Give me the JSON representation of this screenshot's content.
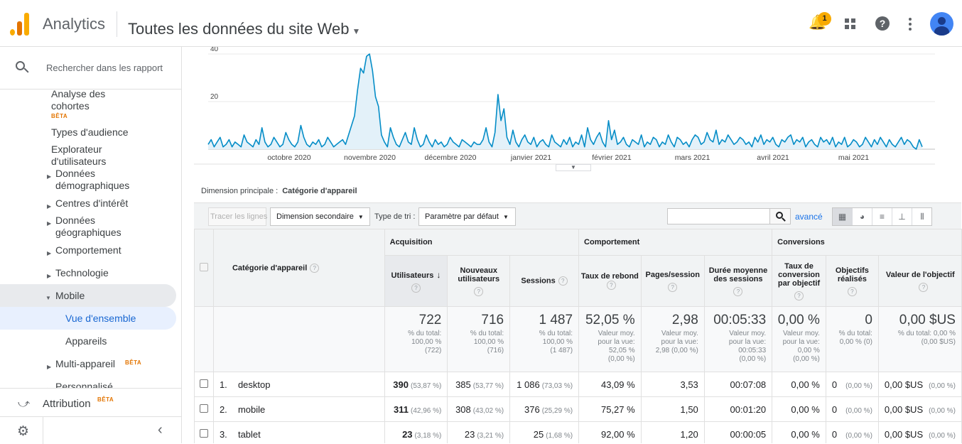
{
  "header": {
    "app_name": "Analytics",
    "property": "Toutes les données du site Web",
    "notification_count": "1"
  },
  "sidebar": {
    "search_placeholder": "Rechercher dans les rapport",
    "items": [
      {
        "label": "Analyse des cohortes",
        "badge": "BÊTA"
      },
      {
        "label": "Types d'audience"
      },
      {
        "label": "Explorateur d'utilisateurs"
      },
      {
        "label": "Données démographiques"
      },
      {
        "label": "Centres d'intérêt"
      },
      {
        "label": "Données géographiques"
      },
      {
        "label": "Comportement"
      },
      {
        "label": "Technologie"
      },
      {
        "label": "Mobile"
      },
      {
        "label": "Vue d'ensemble"
      },
      {
        "label": "Appareils"
      },
      {
        "label": "Multi-appareil",
        "badge": "BÊTA"
      },
      {
        "label": "Personnalisé"
      }
    ],
    "attribution": {
      "label": "Attribution",
      "badge": "BÊTA"
    }
  },
  "chart_data": {
    "type": "area",
    "x_ticks": [
      "octobre 2020",
      "novembre 2020",
      "décembre 2020",
      "janvier 2021",
      "février 2021",
      "mars 2021",
      "avril 2021",
      "mai 2021"
    ],
    "y_ticks": [
      "20",
      "40"
    ],
    "ylim": [
      0,
      40
    ],
    "color": "#058dc7",
    "fill": "#e3f1f9",
    "series": [
      {
        "values": [
          2,
          4,
          1,
          3,
          5,
          1,
          2,
          4,
          1,
          3,
          2,
          1,
          6,
          3,
          2,
          1,
          4,
          2,
          9,
          3,
          1,
          2,
          5,
          3,
          1,
          2,
          7,
          4,
          2,
          1,
          3,
          10,
          5,
          2,
          1,
          3,
          2,
          4,
          1,
          2,
          5,
          3,
          1,
          2,
          3,
          4,
          2,
          6,
          10,
          14,
          25,
          34,
          32,
          39,
          40,
          33,
          22,
          18,
          6,
          3,
          1,
          9,
          5,
          2,
          1,
          4,
          7,
          3,
          2,
          9,
          4,
          1,
          2,
          6,
          3,
          1,
          4,
          2,
          3,
          1,
          2,
          5,
          3,
          2,
          1,
          4,
          3,
          2,
          1,
          3,
          2,
          2,
          4,
          9,
          3,
          1,
          7,
          23,
          12,
          17,
          5,
          2,
          8,
          3,
          1,
          4,
          6,
          3,
          2,
          5,
          1,
          3,
          4,
          2,
          1,
          6,
          3,
          2,
          1,
          4,
          2,
          5,
          1,
          3,
          2,
          6,
          1,
          9,
          4,
          2,
          5,
          7,
          3,
          1,
          12,
          4,
          8,
          2,
          3,
          5,
          2,
          1,
          4,
          3,
          2,
          6,
          1,
          3,
          2,
          5,
          4,
          1,
          3,
          2,
          6,
          3,
          1,
          5,
          4,
          2,
          3,
          1,
          4,
          6,
          5,
          2,
          3,
          7,
          4,
          3,
          8,
          2,
          4,
          3,
          6,
          4,
          2,
          3,
          5,
          4,
          2,
          3,
          1,
          5,
          3,
          6,
          2,
          4,
          3,
          5,
          2,
          1,
          4,
          3,
          5,
          6,
          2,
          4,
          3,
          5,
          1,
          3,
          4,
          2,
          1,
          5,
          3,
          4,
          2,
          5,
          1,
          3,
          2,
          5,
          1,
          2,
          4,
          3,
          1,
          2,
          5,
          3,
          1,
          4,
          2,
          5,
          3,
          1,
          4,
          2,
          1,
          3,
          5,
          2,
          4,
          3,
          1,
          0,
          4,
          1
        ]
      }
    ]
  },
  "report": {
    "primary_dimension_label": "Dimension principale :",
    "primary_dimension_value": "Catégorie d'appareil",
    "plot_rows_button": "Tracer les lignes",
    "secondary_dimension": "Dimension secondaire",
    "sort_type_label": "Type de tri :",
    "sort_type_value": "Paramètre par défaut",
    "advanced_link": "avancé"
  },
  "table": {
    "dimension_header": "Catégorie d'appareil",
    "groups": [
      "Acquisition",
      "Comportement",
      "Conversions"
    ],
    "columns": [
      "Utilisateurs",
      "Nouveaux utilisateurs",
      "Sessions",
      "Taux de rebond",
      "Pages/session",
      "Durée moyenne des sessions",
      "Taux de conversion par objectif",
      "Objectifs réalisés",
      "Valeur de l'objectif"
    ],
    "totals": [
      {
        "value": "722",
        "sub": "% du total:\n100,00 %\n(722)"
      },
      {
        "value": "716",
        "sub": "% du total:\n100,00 %\n(716)"
      },
      {
        "value": "1 487",
        "sub": "% du total:\n100,00 %\n(1 487)"
      },
      {
        "value": "52,05 %",
        "sub": "Valeur moy.\npour la vue:\n52,05 %\n(0,00 %)"
      },
      {
        "value": "2,98",
        "sub": "Valeur moy.\npour la vue:\n2,98 (0,00 %)"
      },
      {
        "value": "00:05:33",
        "sub": "Valeur moy.\npour la vue:\n00:05:33\n(0,00 %)"
      },
      {
        "value": "0,00 %",
        "sub": "Valeur moy.\npour la vue:\n0,00 %\n(0,00 %)"
      },
      {
        "value": "0",
        "sub": "% du total:\n0,00 % (0)"
      },
      {
        "value": "0,00 $US",
        "sub": "% du total: 0,00 %\n(0,00 $US)"
      }
    ],
    "rows": [
      {
        "num": "1.",
        "name": "desktop",
        "users": "390",
        "users_pct": "(53,87 %)",
        "new_users": "385",
        "new_users_pct": "(53,77 %)",
        "sessions": "1 086",
        "sessions_pct": "(73,03 %)",
        "bounce": "43,09 %",
        "pages": "3,53",
        "duration": "00:07:08",
        "conv_rate": "0,00 %",
        "goals": "0",
        "goals_pct": "(0,00 %)",
        "goal_value": "0,00 $US",
        "goal_value_pct": "(0,00 %)"
      },
      {
        "num": "2.",
        "name": "mobile",
        "users": "311",
        "users_pct": "(42,96 %)",
        "new_users": "308",
        "new_users_pct": "(43,02 %)",
        "sessions": "376",
        "sessions_pct": "(25,29 %)",
        "bounce": "75,27 %",
        "pages": "1,50",
        "duration": "00:01:20",
        "conv_rate": "0,00 %",
        "goals": "0",
        "goals_pct": "(0,00 %)",
        "goal_value": "0,00 $US",
        "goal_value_pct": "(0,00 %)"
      },
      {
        "num": "3.",
        "name": "tablet",
        "users": "23",
        "users_pct": "(3,18 %)",
        "new_users": "23",
        "new_users_pct": "(3,21 %)",
        "sessions": "25",
        "sessions_pct": "(1,68 %)",
        "bounce": "92,00 %",
        "pages": "1,20",
        "duration": "00:00:05",
        "conv_rate": "0,00 %",
        "goals": "0",
        "goals_pct": "(0,00 %)",
        "goal_value": "0,00 $US",
        "goal_value_pct": "(0,00 %)"
      }
    ]
  }
}
